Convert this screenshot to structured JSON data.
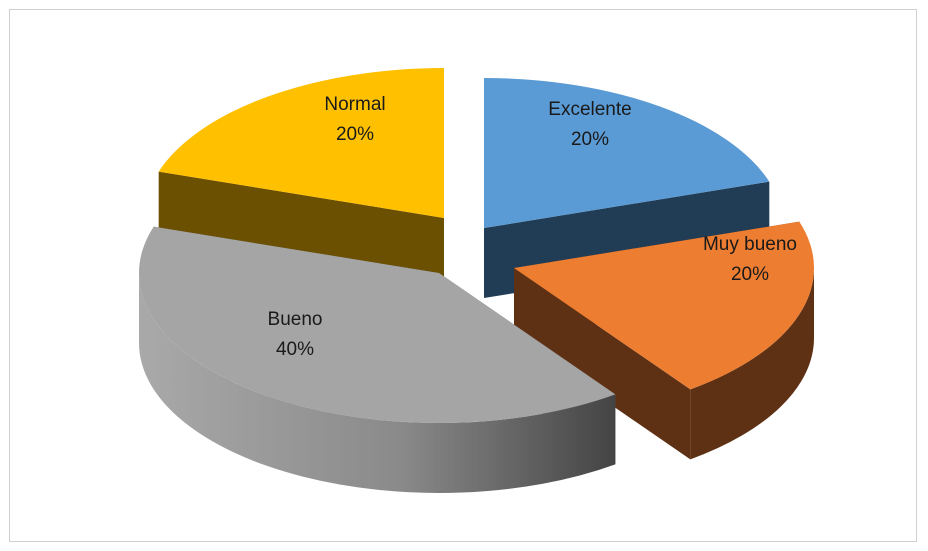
{
  "chart_data": {
    "type": "pie",
    "variant": "3d-exploded",
    "slices": [
      {
        "label": "Excelente",
        "value": 20,
        "value_label": "20%",
        "color": "#5B9BD5",
        "side_color": "#213D56"
      },
      {
        "label": "Muy bueno",
        "value": 20,
        "value_label": "20%",
        "color": "#ED7D31",
        "side_color": "#5F3114"
      },
      {
        "label": "Bueno",
        "value": 40,
        "value_label": "40%",
        "color": "#A5A5A5",
        "side_color": "#5A5A5A"
      },
      {
        "label": "Normal",
        "value": 20,
        "value_label": "20%",
        "color": "#FFC000",
        "side_color": "#6A5000"
      }
    ],
    "title": "",
    "legend": "none"
  }
}
